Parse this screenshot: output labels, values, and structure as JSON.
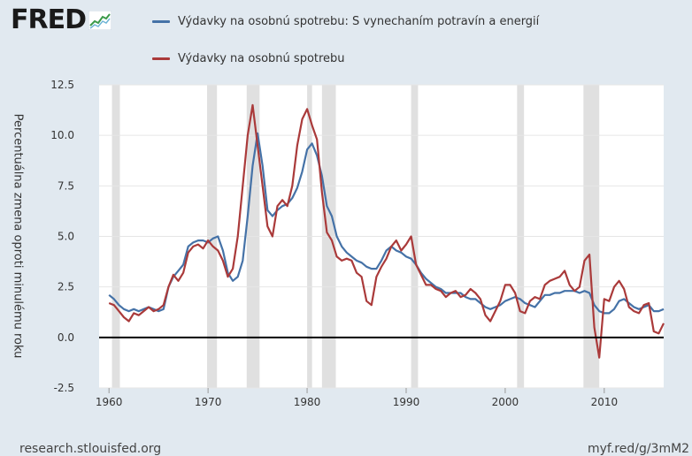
{
  "logo": {
    "text": "FRED",
    "icon": "fred-chart-icon"
  },
  "footer": {
    "left": "research.stlouisfed.org",
    "right": "myf.red/g/3mM2"
  },
  "chart_data": {
    "type": "line",
    "title": "",
    "xlabel": "",
    "ylabel": "Percentuálna zmena oproti minulému roku",
    "xlim": [
      1959,
      2016
    ],
    "ylim": [
      -2.5,
      12.5
    ],
    "yticks": [
      "12.5",
      "10.0",
      "7.5",
      "5.0",
      "2.5",
      "0.0",
      "-2.5"
    ],
    "ytick_values": [
      12.5,
      10.0,
      7.5,
      5.0,
      2.5,
      0.0,
      -2.5
    ],
    "xticks": [
      "1960",
      "1970",
      "1980",
      "1990",
      "2000",
      "2010"
    ],
    "xtick_values": [
      1960,
      1970,
      1980,
      1990,
      2000,
      2010
    ],
    "grid": true,
    "legend_position": "top",
    "recessions": [
      [
        1960.3,
        1961.1
      ],
      [
        1969.9,
        1970.9
      ],
      [
        1973.9,
        1975.2
      ],
      [
        1980.0,
        1980.5
      ],
      [
        1981.5,
        1982.9
      ],
      [
        1990.5,
        1991.2
      ],
      [
        2001.2,
        2001.9
      ],
      [
        2007.9,
        2009.5
      ]
    ],
    "colors": {
      "background": "#e1e9f0",
      "plot": "#ffffff",
      "grid": "#e6e6e6",
      "recession": "#e0e0e0",
      "zero_line": "#000000"
    },
    "series": [
      {
        "name": "Výdavky na osobnú spotrebu: S vynechaním potravín a energií",
        "color": "#4572a7",
        "x": [
          1960.0,
          1960.5,
          1961.0,
          1961.5,
          1962.0,
          1962.5,
          1963.0,
          1963.5,
          1964.0,
          1964.5,
          1965.0,
          1965.5,
          1966.0,
          1966.5,
          1967.0,
          1967.5,
          1968.0,
          1968.5,
          1969.0,
          1969.5,
          1970.0,
          1970.5,
          1971.0,
          1971.5,
          1972.0,
          1972.5,
          1973.0,
          1973.5,
          1974.0,
          1974.5,
          1975.0,
          1975.5,
          1976.0,
          1976.5,
          1977.0,
          1977.5,
          1978.0,
          1978.5,
          1979.0,
          1979.5,
          1980.0,
          1980.5,
          1981.0,
          1981.5,
          1982.0,
          1982.5,
          1983.0,
          1983.5,
          1984.0,
          1984.5,
          1985.0,
          1985.5,
          1986.0,
          1986.5,
          1987.0,
          1987.5,
          1988.0,
          1988.5,
          1989.0,
          1989.5,
          1990.0,
          1990.5,
          1991.0,
          1991.5,
          1992.0,
          1992.5,
          1993.0,
          1993.5,
          1994.0,
          1994.5,
          1995.0,
          1995.5,
          1996.0,
          1996.5,
          1997.0,
          1997.5,
          1998.0,
          1998.5,
          1999.0,
          1999.5,
          2000.0,
          2000.5,
          2001.0,
          2001.5,
          2002.0,
          2002.5,
          2003.0,
          2003.5,
          2004.0,
          2004.5,
          2005.0,
          2005.5,
          2006.0,
          2006.5,
          2007.0,
          2007.5,
          2008.0,
          2008.5,
          2009.0,
          2009.5,
          2010.0,
          2010.5,
          2011.0,
          2011.5,
          2012.0,
          2012.5,
          2013.0,
          2013.5,
          2014.0,
          2014.5,
          2015.0,
          2015.5,
          2016.0
        ],
        "y": [
          2.1,
          1.9,
          1.6,
          1.4,
          1.3,
          1.4,
          1.3,
          1.4,
          1.5,
          1.4,
          1.3,
          1.4,
          2.5,
          3.0,
          3.3,
          3.6,
          4.5,
          4.7,
          4.8,
          4.8,
          4.7,
          4.9,
          5.0,
          4.3,
          3.2,
          2.8,
          3.0,
          3.8,
          6.0,
          8.5,
          10.1,
          8.5,
          6.3,
          6.0,
          6.3,
          6.5,
          6.6,
          6.9,
          7.4,
          8.2,
          9.3,
          9.6,
          9.0,
          8.0,
          6.5,
          6.0,
          5.0,
          4.5,
          4.2,
          4.0,
          3.8,
          3.7,
          3.5,
          3.4,
          3.4,
          3.8,
          4.3,
          4.5,
          4.3,
          4.2,
          4.0,
          3.9,
          3.6,
          3.2,
          2.9,
          2.7,
          2.5,
          2.4,
          2.2,
          2.2,
          2.2,
          2.2,
          2.0,
          1.9,
          1.9,
          1.7,
          1.5,
          1.4,
          1.5,
          1.6,
          1.8,
          1.9,
          2.0,
          1.9,
          1.7,
          1.6,
          1.5,
          1.8,
          2.1,
          2.1,
          2.2,
          2.2,
          2.3,
          2.3,
          2.3,
          2.2,
          2.3,
          2.2,
          1.6,
          1.3,
          1.2,
          1.2,
          1.4,
          1.8,
          1.9,
          1.7,
          1.5,
          1.4,
          1.5,
          1.6,
          1.3,
          1.3,
          1.4
        ]
      },
      {
        "name": "Výdavky na osobnú spotrebu",
        "color": "#aa3a3a",
        "x": [
          1960.0,
          1960.5,
          1961.0,
          1961.5,
          1962.0,
          1962.5,
          1963.0,
          1963.5,
          1964.0,
          1964.5,
          1965.0,
          1965.5,
          1966.0,
          1966.5,
          1967.0,
          1967.5,
          1968.0,
          1968.5,
          1969.0,
          1969.5,
          1970.0,
          1970.5,
          1971.0,
          1971.5,
          1972.0,
          1972.5,
          1973.0,
          1973.5,
          1974.0,
          1974.5,
          1975.0,
          1975.5,
          1976.0,
          1976.5,
          1977.0,
          1977.5,
          1978.0,
          1978.5,
          1979.0,
          1979.5,
          1980.0,
          1980.5,
          1981.0,
          1981.5,
          1982.0,
          1982.5,
          1983.0,
          1983.5,
          1984.0,
          1984.5,
          1985.0,
          1985.5,
          1986.0,
          1986.5,
          1987.0,
          1987.5,
          1988.0,
          1988.5,
          1989.0,
          1989.5,
          1990.0,
          1990.5,
          1991.0,
          1991.5,
          1992.0,
          1992.5,
          1993.0,
          1993.5,
          1994.0,
          1994.5,
          1995.0,
          1995.5,
          1996.0,
          1996.5,
          1997.0,
          1997.5,
          1998.0,
          1998.5,
          1999.0,
          1999.5,
          2000.0,
          2000.5,
          2001.0,
          2001.5,
          2002.0,
          2002.5,
          2003.0,
          2003.5,
          2004.0,
          2004.5,
          2005.0,
          2005.5,
          2006.0,
          2006.5,
          2007.0,
          2007.5,
          2008.0,
          2008.5,
          2009.0,
          2009.5,
          2010.0,
          2010.5,
          2011.0,
          2011.5,
          2012.0,
          2012.5,
          2013.0,
          2013.5,
          2014.0,
          2014.5,
          2015.0,
          2015.5,
          2016.0
        ],
        "y": [
          1.7,
          1.6,
          1.3,
          1.0,
          0.8,
          1.2,
          1.1,
          1.3,
          1.5,
          1.3,
          1.4,
          1.6,
          2.5,
          3.1,
          2.8,
          3.2,
          4.2,
          4.5,
          4.6,
          4.4,
          4.8,
          4.5,
          4.3,
          3.8,
          3.0,
          3.4,
          5.0,
          7.5,
          10.0,
          11.5,
          9.5,
          7.5,
          5.5,
          5.0,
          6.5,
          6.8,
          6.5,
          7.5,
          9.5,
          10.8,
          11.3,
          10.5,
          9.8,
          7.2,
          5.2,
          4.8,
          4.0,
          3.8,
          3.9,
          3.8,
          3.2,
          3.0,
          1.8,
          1.6,
          3.0,
          3.5,
          3.9,
          4.5,
          4.8,
          4.3,
          4.6,
          5.0,
          3.6,
          3.1,
          2.6,
          2.6,
          2.4,
          2.3,
          2.0,
          2.2,
          2.3,
          2.0,
          2.1,
          2.4,
          2.2,
          1.9,
          1.1,
          0.8,
          1.3,
          1.8,
          2.6,
          2.6,
          2.2,
          1.3,
          1.2,
          1.8,
          2.0,
          1.9,
          2.6,
          2.8,
          2.9,
          3.0,
          3.3,
          2.6,
          2.3,
          2.5,
          3.8,
          4.1,
          0.5,
          -1.0,
          1.9,
          1.8,
          2.5,
          2.8,
          2.4,
          1.5,
          1.3,
          1.2,
          1.6,
          1.7,
          0.3,
          0.2,
          0.7
        ]
      }
    ]
  }
}
